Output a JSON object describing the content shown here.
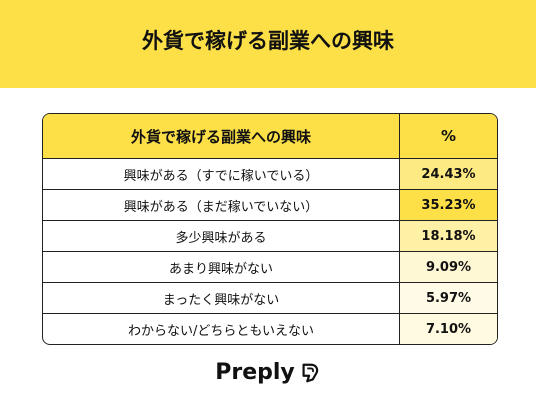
{
  "banner": {
    "title": "外貨で稼げる副業への興味"
  },
  "table": {
    "header": {
      "label": "外貨で稼げる副業への興味",
      "value": "%"
    }
  },
  "chart_data": {
    "type": "table",
    "columns": [
      "外貨で稼げる副業への興味",
      "%"
    ],
    "rows": [
      {
        "label": "興味がある（すでに稼いでいる）",
        "value": "24.43%",
        "num": 24.43
      },
      {
        "label": "興味がある（まだ稼いでいない）",
        "value": "35.23%",
        "num": 35.23
      },
      {
        "label": "多少興味がある",
        "value": "18.18%",
        "num": 18.18
      },
      {
        "label": "あまり興味がない",
        "value": "9.09%",
        "num": 9.09
      },
      {
        "label": "まったく興味がない",
        "value": "5.97%",
        "num": 5.97
      },
      {
        "label": "わからない/どちらともいえない",
        "value": "7.10%",
        "num": 7.1
      }
    ],
    "color_min": "#fffbe6",
    "color_max": "#fde047"
  },
  "logo": {
    "text": "Preply"
  }
}
